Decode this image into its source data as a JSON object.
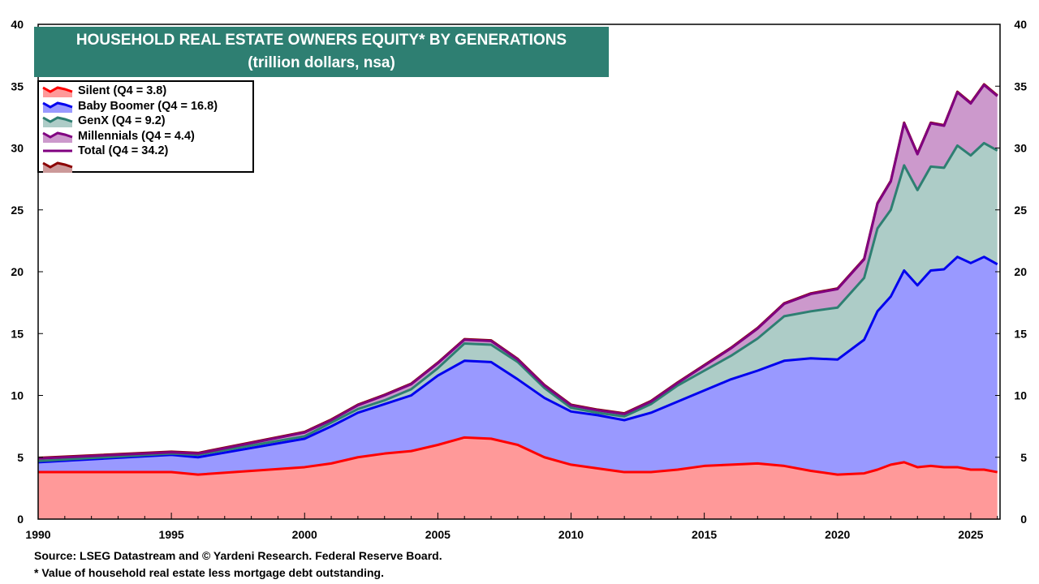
{
  "chart_data": {
    "type": "area",
    "stacked": true,
    "title": "HOUSEHOLD REAL ESTATE OWNERS EQUITY* BY GENERATIONS",
    "subtitle": "(trillion dollars, nsa)",
    "xlim": [
      1990,
      2026.1
    ],
    "ylim": [
      0,
      40
    ],
    "x_ticks": [
      1990,
      1995,
      2000,
      2005,
      2010,
      2015,
      2020,
      2025
    ],
    "y_ticks": [
      0,
      5,
      10,
      15,
      20,
      25,
      30,
      35,
      40
    ],
    "grid": false,
    "legend_placement": "top-left",
    "x": [
      1990,
      1995,
      1996,
      2000,
      2001,
      2002,
      2003,
      2004,
      2005,
      2006,
      2007,
      2008,
      2009,
      2010,
      2011,
      2012,
      2013,
      2014,
      2015,
      2016,
      2017,
      2018,
      2019,
      2020,
      2021,
      2021.5,
      2022,
      2022.5,
      2023,
      2023.5,
      2024,
      2024.5,
      2025,
      2025.5,
      2026
    ],
    "series": [
      {
        "name": "Silent (Q4 = 3.8)",
        "line": "#FF0000",
        "fill": "#FF9999",
        "values": [
          3.8,
          3.8,
          3.6,
          4.2,
          4.5,
          5.0,
          5.3,
          5.5,
          6.0,
          6.6,
          6.5,
          6.0,
          5.0,
          4.4,
          4.1,
          3.8,
          3.8,
          4.0,
          4.3,
          4.4,
          4.5,
          4.3,
          3.9,
          3.6,
          3.7,
          4.0,
          4.4,
          4.6,
          4.2,
          4.3,
          4.2,
          4.2,
          4.0,
          4.0,
          3.8
        ]
      },
      {
        "name": "Baby Boomer (Q4 = 16.8)",
        "line": "#0000EE",
        "fill": "#9999FF",
        "values": [
          0.8,
          1.4,
          1.4,
          2.3,
          3.0,
          3.6,
          4.0,
          4.5,
          5.6,
          6.2,
          6.2,
          5.3,
          4.8,
          4.3,
          4.3,
          4.2,
          4.8,
          5.5,
          6.1,
          6.9,
          7.5,
          8.5,
          9.1,
          9.3,
          10.8,
          12.8,
          13.6,
          15.5,
          14.7,
          15.8,
          16.0,
          17.0,
          16.7,
          17.2,
          16.8
        ]
      },
      {
        "name": "GenX (Q4 = 9.2)",
        "line": "#2E7F72",
        "fill": "#ADCCC7",
        "values": [
          0.1,
          0.1,
          0.2,
          0.2,
          0.3,
          0.3,
          0.3,
          0.5,
          0.6,
          1.4,
          1.4,
          1.4,
          0.8,
          0.3,
          0.2,
          0.3,
          0.7,
          1.3,
          1.6,
          1.9,
          2.6,
          3.6,
          3.8,
          4.2,
          5.0,
          6.7,
          7.0,
          8.5,
          7.7,
          8.4,
          8.2,
          9.0,
          8.7,
          9.2,
          9.2
        ]
      },
      {
        "name": "Millennials (Q4 = 4.4)",
        "line": "#800080",
        "fill": "#CC99CC",
        "values": [
          0.2,
          0.1,
          0.1,
          0.3,
          0.2,
          0.3,
          0.4,
          0.4,
          0.4,
          0.3,
          0.3,
          0.2,
          0.2,
          0.2,
          0.2,
          0.2,
          0.2,
          0.2,
          0.4,
          0.6,
          0.8,
          1.0,
          1.4,
          1.5,
          1.5,
          2.0,
          2.3,
          3.4,
          2.9,
          3.5,
          3.4,
          4.3,
          4.2,
          4.7,
          4.4
        ]
      }
    ],
    "total": {
      "name": "Total (Q4 = 34.2)",
      "line": "#800080"
    },
    "extra_legend": {
      "name": "",
      "line": "#8B0000",
      "fill": "#CC9999"
    }
  },
  "footnotes": {
    "source": "Source: LSEG Datastream and © Yardeni Research. Federal Reserve Board.",
    "note": "* Value of household real estate less mortgage debt outstanding."
  }
}
